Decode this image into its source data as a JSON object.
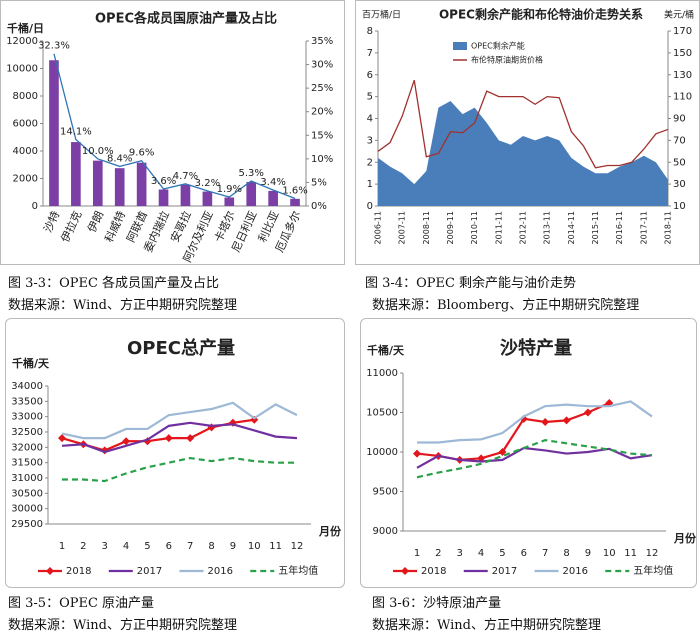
{
  "chart_data": [
    {
      "type": "bar",
      "title": "OPEC各成员国原油产量及占比",
      "ylabel": "千桶/日",
      "categories": [
        "沙特",
        "伊拉克",
        "伊朗",
        "科威特",
        "阿联酋",
        "委内瑞拉",
        "安哥拉",
        "阿尔及利亚",
        "卡塔尔",
        "尼日利亚",
        "利比亚",
        "厄瓜多尔"
      ],
      "series": [
        {
          "color": "#7b3fa6",
          "values": [
            10600,
            4650,
            3300,
            2750,
            3150,
            1200,
            1550,
            1050,
            620,
            1750,
            1100,
            520
          ]
        },
        {
          "type": "line",
          "axis": "y2",
          "color": "#2e75b6",
          "values": [
            32.3,
            14.1,
            10.0,
            8.4,
            9.6,
            3.6,
            4.7,
            3.2,
            1.9,
            5.3,
            3.4,
            1.6
          ],
          "value_labels": [
            "32.3%",
            "14.1%",
            "10.0%",
            "8.4%",
            "9.6%",
            "3.6%",
            "4.7%",
            "3.2%",
            "1.9%",
            "5.3%",
            "3.4%",
            "1.6%"
          ]
        }
      ],
      "ylim": [
        0,
        12000
      ],
      "yticks": [
        0,
        2000,
        4000,
        6000,
        8000,
        10000,
        12000
      ],
      "y2lim": [
        0,
        35
      ],
      "y2ticks": [
        {
          "value": 0,
          "label": "0%"
        },
        {
          "value": 5,
          "label": "5%"
        },
        {
          "value": 10,
          "label": "10%"
        },
        {
          "value": 15,
          "label": "15%"
        },
        {
          "value": 20,
          "label": "20%"
        },
        {
          "value": 25,
          "label": "25%"
        },
        {
          "value": 30,
          "label": "30%"
        },
        {
          "value": 35,
          "label": "35%"
        }
      ]
    },
    {
      "type": "area",
      "title": "OPEC剩余产能和布伦特油价走势关系",
      "ylabel": "百万桶/日",
      "y2label": "美元/桶",
      "legend": "upper left",
      "x": [
        "2006-11",
        null,
        "2007-11",
        null,
        "2008-11",
        null,
        "2009-11",
        null,
        "2010-11",
        null,
        "2011-11",
        null,
        "2012-11",
        null,
        "2013-11",
        null,
        "2014-11",
        null,
        "2015-11",
        null,
        "2016-11",
        null,
        "2017-11",
        null,
        "2018-11"
      ],
      "series": [
        {
          "name": "OPEC剩余产能",
          "type": "area",
          "color": "#4a7ebb",
          "values": [
            2.2,
            1.8,
            1.5,
            1.0,
            1.6,
            4.5,
            4.8,
            4.2,
            4.5,
            3.8,
            3.0,
            2.8,
            3.2,
            3.0,
            3.2,
            3.0,
            2.2,
            1.8,
            1.5,
            1.5,
            1.8,
            2.0,
            2.3,
            2.0,
            1.2
          ]
        },
        {
          "name": "布伦特原油期货价格",
          "type": "line",
          "axis": "y2",
          "color": "#a0312e",
          "values": [
            60,
            68,
            92,
            125,
            55,
            58,
            78,
            77,
            86,
            115,
            110,
            110,
            110,
            103,
            110,
            109,
            78,
            65,
            45,
            47,
            47,
            50,
            62,
            76,
            80
          ]
        }
      ],
      "ylim": [
        0,
        8
      ],
      "yticks": [
        0,
        1,
        2,
        3,
        4,
        5,
        6,
        7,
        8
      ],
      "y2lim": [
        10,
        170
      ],
      "y2ticks": [
        10,
        30,
        50,
        70,
        90,
        110,
        130,
        150,
        170
      ]
    },
    {
      "type": "line",
      "title": "OPEC总产量",
      "ylabel": "千桶/天",
      "xlabel": "月份",
      "legend": "bottom",
      "categories": [
        1,
        2,
        3,
        4,
        5,
        6,
        7,
        8,
        9,
        10,
        11,
        12
      ],
      "series": [
        {
          "name": "2018",
          "color": "#e3161b",
          "marker": "diamond",
          "values": [
            32300,
            32100,
            31900,
            32200,
            32200,
            32300,
            32300,
            32650,
            32800,
            32900,
            null,
            null
          ]
        },
        {
          "name": "2017",
          "color": "#7030a0",
          "values": [
            32050,
            32100,
            31850,
            32050,
            32250,
            32700,
            32800,
            32700,
            32750,
            32550,
            32350,
            32300
          ]
        },
        {
          "name": "2016",
          "color": "#9db9d6",
          "values": [
            32450,
            32300,
            32300,
            32600,
            32600,
            33050,
            33150,
            33250,
            33450,
            32950,
            33400,
            33050
          ]
        },
        {
          "name": "五年均值",
          "color": "#2aa04a",
          "dash": true,
          "values": [
            30950,
            30950,
            30900,
            31150,
            31350,
            31500,
            31650,
            31550,
            31650,
            31550,
            31500,
            31500
          ]
        }
      ],
      "ylim": [
        29500,
        34000
      ],
      "yticks": [
        29500,
        30000,
        30500,
        31000,
        31500,
        32000,
        32500,
        33000,
        33500,
        34000
      ]
    },
    {
      "type": "line",
      "title": "沙特产量",
      "ylabel": "千桶/天",
      "xlabel": "月份",
      "legend": "bottom",
      "categories": [
        1,
        2,
        3,
        4,
        5,
        6,
        7,
        8,
        9,
        10,
        11,
        12
      ],
      "series": [
        {
          "name": "2018",
          "color": "#e3161b",
          "marker": "diamond",
          "values": [
            9980,
            9950,
            9900,
            9920,
            10000,
            10420,
            10380,
            10400,
            10500,
            10620,
            null,
            null
          ]
        },
        {
          "name": "2017",
          "color": "#7030a0",
          "values": [
            9800,
            9950,
            9900,
            9880,
            9900,
            10050,
            10020,
            9980,
            10000,
            10040,
            9920,
            9960
          ]
        },
        {
          "name": "2016",
          "color": "#9db9d6",
          "values": [
            10120,
            10120,
            10150,
            10160,
            10240,
            10450,
            10580,
            10600,
            10580,
            10580,
            10640,
            10450
          ]
        },
        {
          "name": "五年均值",
          "color": "#2aa04a",
          "dash": true,
          "values": [
            9680,
            9740,
            9790,
            9850,
            9950,
            10050,
            10150,
            10110,
            10070,
            10030,
            9980,
            9960
          ]
        }
      ],
      "ylim": [
        9000,
        11000
      ],
      "yticks": [
        9000,
        9500,
        10000,
        10500,
        11000
      ]
    }
  ],
  "figures": [
    {
      "caption": "图 3-3：OPEC 各成员国产量及占比",
      "source": "数据来源：Wind、方正中期研究院整理"
    },
    {
      "caption": "图 3-4：OPEC 剩余产能与油价走势",
      "source": "数据来源：Bloomberg、方正中期研究院整理"
    },
    {
      "caption": "图 3-5：OPEC 原油产量",
      "source": "数据来源：Wind、方正中期研究院整理"
    },
    {
      "caption": "图 3-6：沙特原油产量",
      "source": "数据来源：Wind、方正中期研究院整理"
    }
  ]
}
